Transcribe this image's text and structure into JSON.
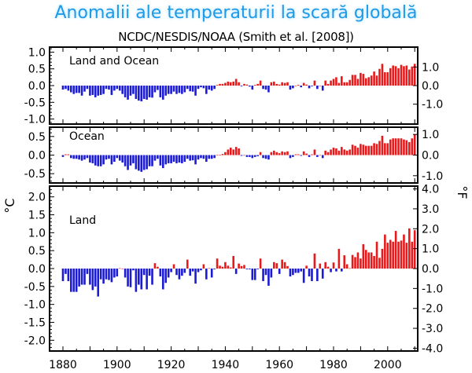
{
  "title": "Anomalii ale temperaturii la scară globală",
  "subtitle": "NCDC/NESDIS/NOAA (Smith et al. [2008])",
  "colors": {
    "positive": "#e8191b",
    "negative": "#1b1bd6",
    "title": "#1f9be6"
  },
  "chart_data": [
    {
      "type": "bar",
      "panel_label": "Land and Ocean",
      "x_start": 1880,
      "x_end": 2010,
      "ylim": [
        -1.15,
        1.15
      ],
      "yticks_c": [
        "-1.0",
        "-0.5",
        "0.0",
        "0.5",
        "1.0"
      ],
      "yticks_f": [
        "-1.0",
        "0.0",
        "1.0"
      ],
      "values": [
        -0.12,
        -0.1,
        -0.15,
        -0.2,
        -0.25,
        -0.22,
        -0.22,
        -0.3,
        -0.18,
        -0.1,
        -0.3,
        -0.28,
        -0.35,
        -0.3,
        -0.28,
        -0.25,
        -0.1,
        -0.12,
        -0.28,
        -0.15,
        -0.1,
        -0.15,
        -0.25,
        -0.35,
        -0.42,
        -0.3,
        -0.25,
        -0.4,
        -0.45,
        -0.47,
        -0.4,
        -0.42,
        -0.35,
        -0.36,
        -0.2,
        -0.13,
        -0.35,
        -0.42,
        -0.3,
        -0.25,
        -0.25,
        -0.18,
        -0.25,
        -0.22,
        -0.25,
        -0.2,
        -0.1,
        -0.17,
        -0.18,
        -0.3,
        -0.1,
        -0.05,
        -0.08,
        -0.25,
        -0.12,
        -0.15,
        -0.1,
        0.02,
        0.05,
        0.05,
        0.08,
        0.12,
        0.1,
        0.12,
        0.2,
        0.1,
        -0.02,
        0.05,
        0.03,
        -0.03,
        -0.12,
        0.02,
        0.05,
        0.15,
        -0.1,
        -0.12,
        -0.2,
        0.1,
        0.12,
        0.05,
        0.03,
        0.1,
        0.08,
        0.1,
        -0.12,
        -0.08,
        0.0,
        0.02,
        -0.05,
        0.08,
        0.03,
        -0.08,
        -0.02,
        0.15,
        -0.1,
        0.0,
        -0.15,
        0.15,
        0.05,
        0.15,
        0.2,
        0.25,
        0.08,
        0.28,
        0.1,
        0.1,
        0.17,
        0.32,
        0.32,
        0.2,
        0.38,
        0.35,
        0.22,
        0.25,
        0.3,
        0.42,
        0.3,
        0.5,
        0.65,
        0.4,
        0.4,
        0.52,
        0.6,
        0.58,
        0.52,
        0.62,
        0.58,
        0.6,
        0.48,
        0.57,
        0.65
      ]
    },
    {
      "type": "bar",
      "panel_label": "Ocean",
      "x_start": 1880,
      "x_end": 2010,
      "ylim": [
        -0.75,
        0.75
      ],
      "yticks_c": [
        "-0.5",
        "0.0",
        "0.5"
      ],
      "yticks_f": [
        "-1.0",
        "0.0",
        "1.0"
      ],
      "values": [
        -0.05,
        0.02,
        0.02,
        -0.08,
        -0.1,
        -0.1,
        -0.12,
        -0.15,
        -0.12,
        -0.08,
        -0.2,
        -0.22,
        -0.28,
        -0.3,
        -0.3,
        -0.25,
        -0.12,
        -0.1,
        -0.25,
        -0.18,
        -0.08,
        -0.15,
        -0.2,
        -0.3,
        -0.4,
        -0.28,
        -0.22,
        -0.38,
        -0.42,
        -0.45,
        -0.4,
        -0.38,
        -0.3,
        -0.3,
        -0.15,
        -0.1,
        -0.28,
        -0.35,
        -0.25,
        -0.22,
        -0.22,
        -0.18,
        -0.22,
        -0.2,
        -0.22,
        -0.18,
        -0.1,
        -0.15,
        -0.14,
        -0.25,
        -0.12,
        -0.08,
        -0.1,
        -0.18,
        -0.1,
        -0.1,
        -0.08,
        0.01,
        0.01,
        0.03,
        0.08,
        0.15,
        0.2,
        0.15,
        0.22,
        0.18,
        -0.02,
        0.0,
        -0.05,
        -0.05,
        -0.08,
        -0.05,
        -0.03,
        0.08,
        -0.08,
        -0.1,
        -0.12,
        0.08,
        0.12,
        0.08,
        0.05,
        0.1,
        0.08,
        0.1,
        -0.08,
        -0.05,
        0.02,
        0.02,
        -0.02,
        0.1,
        0.04,
        -0.05,
        0.02,
        0.15,
        -0.05,
        0.0,
        -0.08,
        0.12,
        0.08,
        0.15,
        0.2,
        0.18,
        0.12,
        0.22,
        0.15,
        0.12,
        0.15,
        0.28,
        0.25,
        0.2,
        0.3,
        0.28,
        0.25,
        0.25,
        0.25,
        0.32,
        0.3,
        0.38,
        0.52,
        0.32,
        0.32,
        0.42,
        0.45,
        0.45,
        0.45,
        0.45,
        0.42,
        0.4,
        0.35,
        0.45,
        0.55
      ]
    },
    {
      "type": "bar",
      "panel_label": "Land",
      "x_start": 1880,
      "x_end": 2010,
      "ylim": [
        -2.3,
        2.3
      ],
      "yticks_c": [
        "-2.0",
        "-1.5",
        "-1.0",
        "-0.5",
        "0.0",
        "0.5",
        "1.0",
        "1.5",
        "2.0"
      ],
      "yticks_f": [
        "-4.0",
        "-3.0",
        "-2.0",
        "-1.0",
        "0.0",
        "1.0",
        "2.0",
        "3.0",
        "4.0"
      ],
      "xticks": [
        "1880",
        "1900",
        "1920",
        "1940",
        "1960",
        "1980",
        "2000"
      ],
      "ylabel_left": "°C",
      "ylabel_right": "°F",
      "values": [
        -0.35,
        -0.15,
        -0.35,
        -0.65,
        -0.65,
        -0.65,
        -0.5,
        -0.45,
        -0.45,
        -0.15,
        -0.45,
        -0.6,
        -0.5,
        -0.78,
        -0.3,
        -0.42,
        -0.3,
        -0.32,
        -0.38,
        -0.25,
        -0.22,
        0.01,
        0.0,
        -0.25,
        -0.5,
        -0.52,
        -0.05,
        -0.65,
        -0.45,
        -0.58,
        -0.18,
        -0.58,
        -0.2,
        -0.45,
        0.15,
        0.05,
        -0.22,
        -0.58,
        -0.4,
        -0.25,
        -0.1,
        0.12,
        -0.18,
        -0.3,
        -0.2,
        -0.12,
        0.25,
        -0.2,
        -0.08,
        -0.42,
        -0.1,
        -0.05,
        0.12,
        -0.3,
        0.01,
        -0.25,
        -0.02,
        0.28,
        0.08,
        0.05,
        0.18,
        0.08,
        0.03,
        0.35,
        -0.15,
        0.14,
        0.07,
        0.1,
        -0.02,
        -0.02,
        -0.32,
        -0.32,
        -0.02,
        0.28,
        -0.35,
        -0.18,
        -0.48,
        -0.25,
        0.18,
        0.15,
        -0.15,
        0.25,
        0.18,
        0.07,
        -0.22,
        -0.18,
        -0.12,
        -0.12,
        -0.08,
        -0.4,
        0.08,
        -0.22,
        -0.35,
        0.42,
        -0.35,
        0.14,
        -0.28,
        0.18,
        0.05,
        -0.1,
        0.17,
        -0.08,
        0.55,
        -0.08,
        0.37,
        0.12,
        0.01,
        0.38,
        0.32,
        0.45,
        0.28,
        0.68,
        0.52,
        0.45,
        0.45,
        0.35,
        0.75,
        0.3,
        0.55,
        0.95,
        0.72,
        0.8,
        0.75,
        1.05,
        0.75,
        0.78,
        0.95,
        0.72,
        1.12,
        0.75,
        1.07
      ]
    }
  ]
}
